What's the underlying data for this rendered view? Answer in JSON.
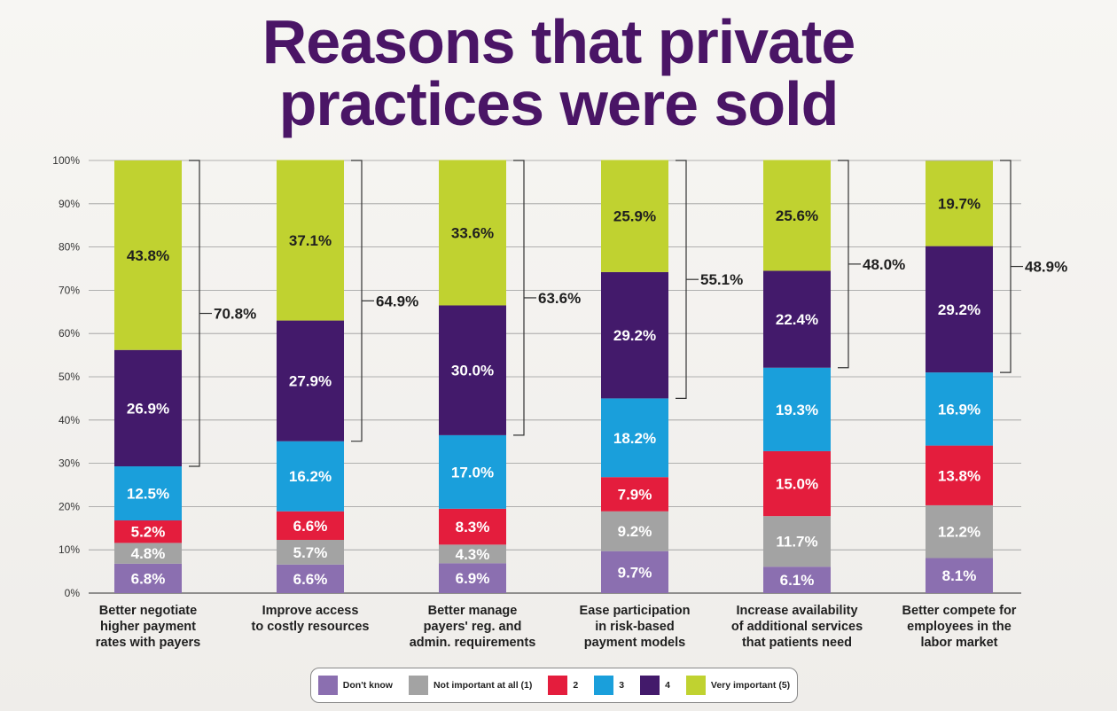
{
  "title": {
    "line1": "Reasons that private",
    "line2": "practices were sold"
  },
  "colors": {
    "title": "#4a1566",
    "dont_know": "#8b6fb0",
    "not_important": "#a3a3a3",
    "two": "#e41d3d",
    "three": "#1a9fdb",
    "four": "#431a6b",
    "very_important": "#c0d230"
  },
  "legend": [
    {
      "label": "Don't know",
      "color_key": "dont_know"
    },
    {
      "label": "Not important at all (1)",
      "color_key": "not_important"
    },
    {
      "label": "2",
      "color_key": "two"
    },
    {
      "label": "3",
      "color_key": "three"
    },
    {
      "label": "4",
      "color_key": "four"
    },
    {
      "label": "Very important (5)",
      "color_key": "very_important"
    }
  ],
  "chart_data": {
    "type": "bar",
    "stacked": true,
    "ylim": [
      0,
      100
    ],
    "yticks": [
      "0%",
      "10%",
      "20%",
      "30%",
      "40%",
      "50%",
      "60%",
      "70%",
      "80%",
      "90%",
      "100%"
    ],
    "grid": true,
    "legend_position": "bottom",
    "categories": [
      [
        "Better negotiate",
        "higher payment",
        "rates with payers"
      ],
      [
        "Improve access",
        "to costly resources"
      ],
      [
        "Better manage",
        "payers' reg. and",
        "admin. requirements"
      ],
      [
        "Ease participation",
        "in risk-based",
        "payment models"
      ],
      [
        "Increase availability",
        "of additional services",
        "that patients need"
      ],
      [
        "Better compete for",
        "employees in the",
        "labor market"
      ]
    ],
    "series": [
      {
        "name": "Don't know",
        "color_key": "dont_know",
        "values": [
          6.8,
          6.6,
          6.9,
          9.7,
          6.1,
          8.1
        ],
        "labels": [
          "6.8%",
          "6.6%",
          "6.9%",
          "9.7%",
          "6.1%",
          "8.1%"
        ]
      },
      {
        "name": "Not important at all (1)",
        "color_key": "not_important",
        "values": [
          4.8,
          5.7,
          4.3,
          9.2,
          11.7,
          12.2
        ],
        "labels": [
          "4.8%",
          "5.7%",
          "4.3%",
          "9.2%",
          "11.7%",
          "12.2%"
        ]
      },
      {
        "name": "2",
        "color_key": "two",
        "values": [
          5.2,
          6.6,
          8.3,
          7.9,
          15.0,
          13.8
        ],
        "labels": [
          "5.2%",
          "6.6%",
          "8.3%",
          "7.9%",
          "15.0%",
          "13.8%"
        ]
      },
      {
        "name": "3",
        "color_key": "three",
        "values": [
          12.5,
          16.2,
          17.0,
          18.2,
          19.3,
          16.9
        ],
        "labels": [
          "12.5%",
          "16.2%",
          "17.0%",
          "18.2%",
          "19.3%",
          "16.9%"
        ]
      },
      {
        "name": "4",
        "color_key": "four",
        "values": [
          26.9,
          27.9,
          30.0,
          29.2,
          22.4,
          29.2
        ],
        "labels": [
          "26.9%",
          "27.9%",
          "30.0%",
          "29.2%",
          "22.4%",
          "29.2%"
        ]
      },
      {
        "name": "Very important (5)",
        "color_key": "very_important",
        "values": [
          43.8,
          37.1,
          33.6,
          25.9,
          25.6,
          19.7
        ],
        "labels": [
          "43.8%",
          "37.1%",
          "33.6%",
          "25.9%",
          "25.6%",
          "19.7%"
        ]
      }
    ],
    "bracket_totals": [
      "70.8%",
      "64.9%",
      "63.6%",
      "55.1%",
      "48.0%",
      "48.9%"
    ]
  }
}
